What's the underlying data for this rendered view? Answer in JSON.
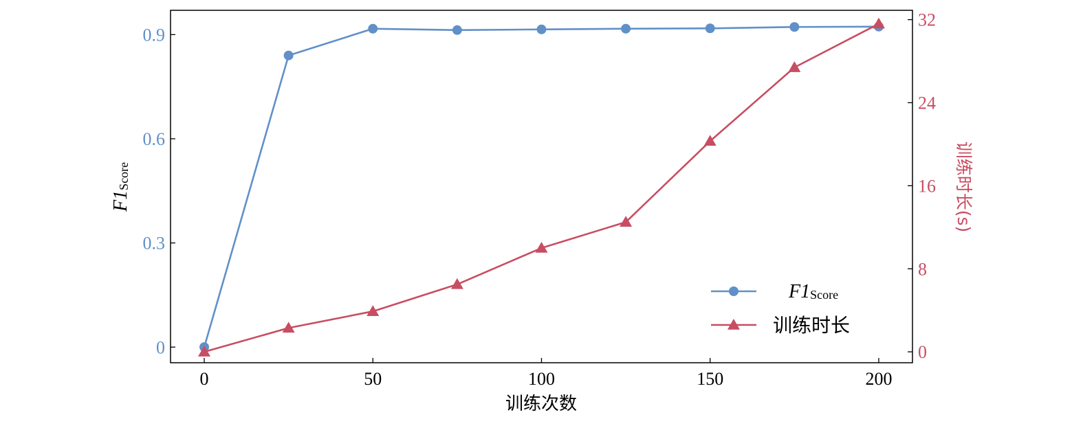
{
  "colors": {
    "f1": "#6190c8",
    "time": "#c84d62",
    "axis": "#000000",
    "background": "#ffffff"
  },
  "chart_data": {
    "type": "line",
    "title": "",
    "xlabel": "训练次数",
    "ylabel_left": {
      "main": "F1",
      "sub": "Score"
    },
    "ylabel_right": "训练时长(s)",
    "x": [
      0,
      25,
      50,
      75,
      100,
      125,
      150,
      175,
      200
    ],
    "xlim": [
      -10,
      210
    ],
    "xticks": [
      "0",
      "50",
      "100",
      "150",
      "200"
    ],
    "ylim_left": [
      -0.045,
      0.97
    ],
    "yticks_left": [
      "0",
      "0.3",
      "0.6",
      "0.9"
    ],
    "ylim_right": [
      -1.05,
      32.9
    ],
    "yticks_right": [
      "0",
      "8",
      "16",
      "24",
      "32"
    ],
    "grid": false,
    "legend_position": "lower-right",
    "series": [
      {
        "name": "F1 Score",
        "name_main": "F1",
        "name_sub": "Score",
        "axis": "left",
        "marker": "circle",
        "values": [
          0.0,
          0.84,
          0.917,
          0.913,
          0.915,
          0.917,
          0.918,
          0.922,
          0.923
        ]
      },
      {
        "name": "训练时长",
        "axis": "right",
        "marker": "triangle",
        "values": [
          0.0,
          2.3,
          3.9,
          6.5,
          10.0,
          12.5,
          20.3,
          27.4,
          31.6
        ]
      }
    ]
  }
}
